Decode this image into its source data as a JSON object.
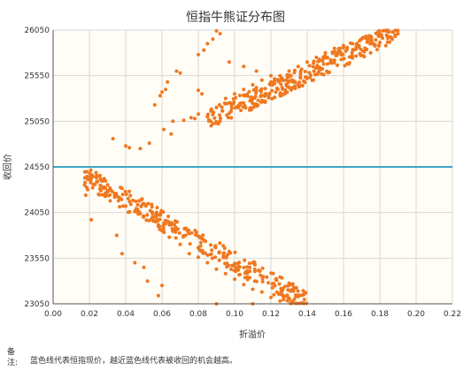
{
  "chart_data": {
    "type": "scatter",
    "title": "恒指牛熊证分布图",
    "xlabel": "折溢价",
    "ylabel": "收回价",
    "xlim": [
      0,
      0.22
    ],
    "ylim": [
      23050,
      26050
    ],
    "x_ticks": [
      "0.00",
      "0.02",
      "0.04",
      "0.06",
      "0.08",
      "0.10",
      "0.12",
      "0.14",
      "0.16",
      "0.18",
      "0.20",
      "0.22"
    ],
    "y_ticks": [
      "23050",
      "23550",
      "24050",
      "24550",
      "25050",
      "25550",
      "26050"
    ],
    "grid": true,
    "reference_line": {
      "value": 24550,
      "color": "#3ea4c8"
    },
    "series": [
      {
        "color": "#f07820",
        "lower_cluster": {
          "approx_points": 330,
          "x_range": [
            0.017,
            0.14
          ],
          "y_at_x_start": 24450,
          "y_at_x_end": 23060,
          "spread": 120
        },
        "upper_cluster": {
          "approx_points": 330,
          "x_range": [
            0.085,
            0.19
          ],
          "y_at_x_start": 25060,
          "y_at_x_end": 26040,
          "spread": 110
        },
        "points": [
          [
            0.019,
            24430
          ],
          [
            0.02,
            24440
          ],
          [
            0.021,
            24420
          ],
          [
            0.022,
            24445
          ],
          [
            0.018,
            24240
          ],
          [
            0.019,
            24300
          ],
          [
            0.021,
            23970
          ],
          [
            0.026,
            24350
          ],
          [
            0.028,
            24330
          ],
          [
            0.03,
            24290
          ],
          [
            0.034,
            24260
          ],
          [
            0.036,
            24180
          ],
          [
            0.04,
            24120
          ],
          [
            0.045,
            24060
          ],
          [
            0.05,
            24010
          ],
          [
            0.055,
            23960
          ],
          [
            0.058,
            23900
          ],
          [
            0.06,
            23850
          ],
          [
            0.064,
            23780
          ],
          [
            0.07,
            23700
          ],
          [
            0.075,
            23600
          ],
          [
            0.08,
            23560
          ],
          [
            0.085,
            23500
          ],
          [
            0.09,
            23430
          ],
          [
            0.095,
            23380
          ],
          [
            0.1,
            23320
          ],
          [
            0.105,
            23260
          ],
          [
            0.11,
            23210
          ],
          [
            0.115,
            23180
          ],
          [
            0.12,
            23120
          ],
          [
            0.125,
            23080
          ],
          [
            0.132,
            23070
          ],
          [
            0.138,
            23150
          ],
          [
            0.035,
            23800
          ],
          [
            0.038,
            23600
          ],
          [
            0.045,
            23500
          ],
          [
            0.05,
            23450
          ],
          [
            0.052,
            23300
          ],
          [
            0.058,
            23140
          ],
          [
            0.06,
            23250
          ],
          [
            0.073,
            23800
          ],
          [
            0.09,
            23050
          ],
          [
            0.11,
            23050
          ],
          [
            0.033,
            24860
          ],
          [
            0.04,
            24780
          ],
          [
            0.042,
            24760
          ],
          [
            0.048,
            24750
          ],
          [
            0.053,
            24810
          ],
          [
            0.056,
            25230
          ],
          [
            0.059,
            25330
          ],
          [
            0.06,
            25370
          ],
          [
            0.062,
            25400
          ],
          [
            0.063,
            25480
          ],
          [
            0.061,
            24960
          ],
          [
            0.065,
            24910
          ],
          [
            0.066,
            25050
          ],
          [
            0.068,
            25600
          ],
          [
            0.07,
            25580
          ],
          [
            0.072,
            25060
          ],
          [
            0.076,
            25090
          ],
          [
            0.078,
            25080
          ],
          [
            0.08,
            25130
          ],
          [
            0.08,
            25390
          ],
          [
            0.082,
            25350
          ],
          [
            0.08,
            25780
          ],
          [
            0.083,
            25830
          ],
          [
            0.085,
            25900
          ],
          [
            0.088,
            25950
          ],
          [
            0.09,
            26040
          ],
          [
            0.092,
            26010
          ],
          [
            0.085,
            25100
          ],
          [
            0.09,
            25200
          ],
          [
            0.095,
            25300
          ],
          [
            0.1,
            25350
          ],
          [
            0.105,
            25400
          ],
          [
            0.11,
            25450
          ],
          [
            0.115,
            25500
          ],
          [
            0.12,
            25550
          ],
          [
            0.125,
            25550
          ],
          [
            0.13,
            25600
          ],
          [
            0.135,
            25650
          ],
          [
            0.14,
            25700
          ],
          [
            0.145,
            25750
          ],
          [
            0.15,
            25800
          ],
          [
            0.155,
            25850
          ],
          [
            0.16,
            25880
          ],
          [
            0.165,
            25900
          ],
          [
            0.17,
            25950
          ],
          [
            0.175,
            25980
          ],
          [
            0.18,
            26000
          ],
          [
            0.185,
            26030
          ],
          [
            0.19,
            26010
          ],
          [
            0.097,
            25700
          ],
          [
            0.105,
            25650
          ],
          [
            0.112,
            25600
          ]
        ]
      }
    ]
  },
  "note": {
    "label": "备注:",
    "text": "蓝色线代表恒指现价，越近蓝色线代表被收回的机会越高。"
  }
}
